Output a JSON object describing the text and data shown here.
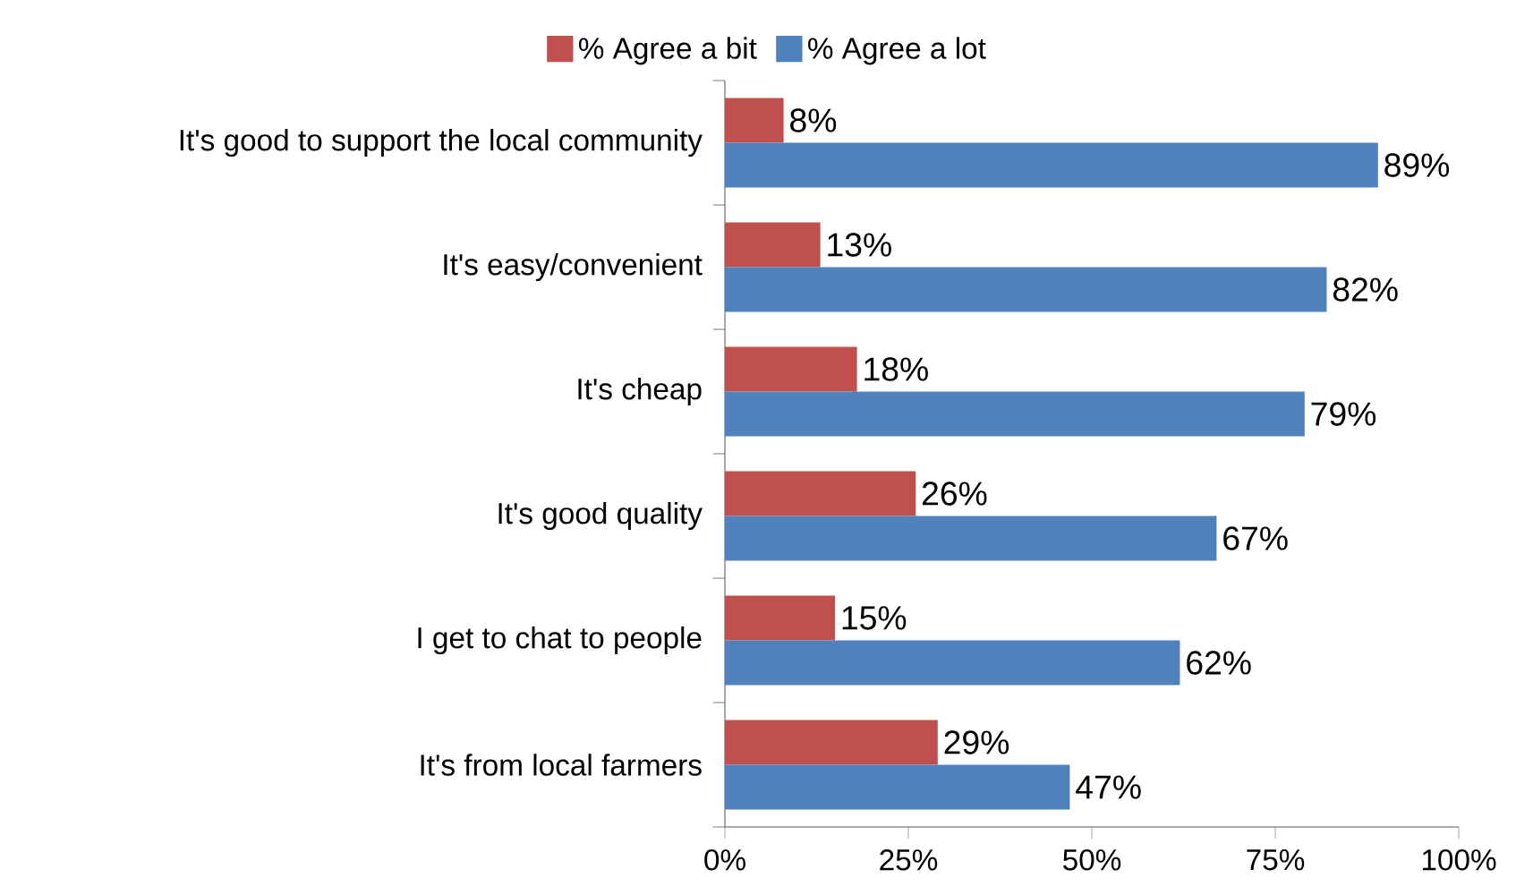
{
  "chart_data": {
    "type": "bar",
    "orientation": "horizontal",
    "categories": [
      "It's good to support the local community",
      "It's easy/convenient",
      "It's cheap",
      "It's good quality",
      "I get to chat to people",
      "It's from local farmers"
    ],
    "series": [
      {
        "name": "% Agree a bit",
        "color": "#c0504d",
        "values": [
          8,
          13,
          18,
          26,
          15,
          29
        ],
        "value_labels": [
          "8%",
          "13%",
          "18%",
          "26%",
          "15%",
          "29%"
        ]
      },
      {
        "name": "% Agree a lot",
        "color": "#4f81bd",
        "values": [
          89,
          82,
          79,
          67,
          62,
          47
        ],
        "value_labels": [
          "89%",
          "82%",
          "79%",
          "67%",
          "62%",
          "47%"
        ]
      }
    ],
    "xlim": [
      0,
      100
    ],
    "xticks": [
      {
        "value": 0,
        "label": "0%"
      },
      {
        "value": 25,
        "label": "25%"
      },
      {
        "value": 50,
        "label": "50%"
      },
      {
        "value": 75,
        "label": "75%"
      },
      {
        "value": 100,
        "label": "100%"
      }
    ],
    "legend": "top"
  }
}
